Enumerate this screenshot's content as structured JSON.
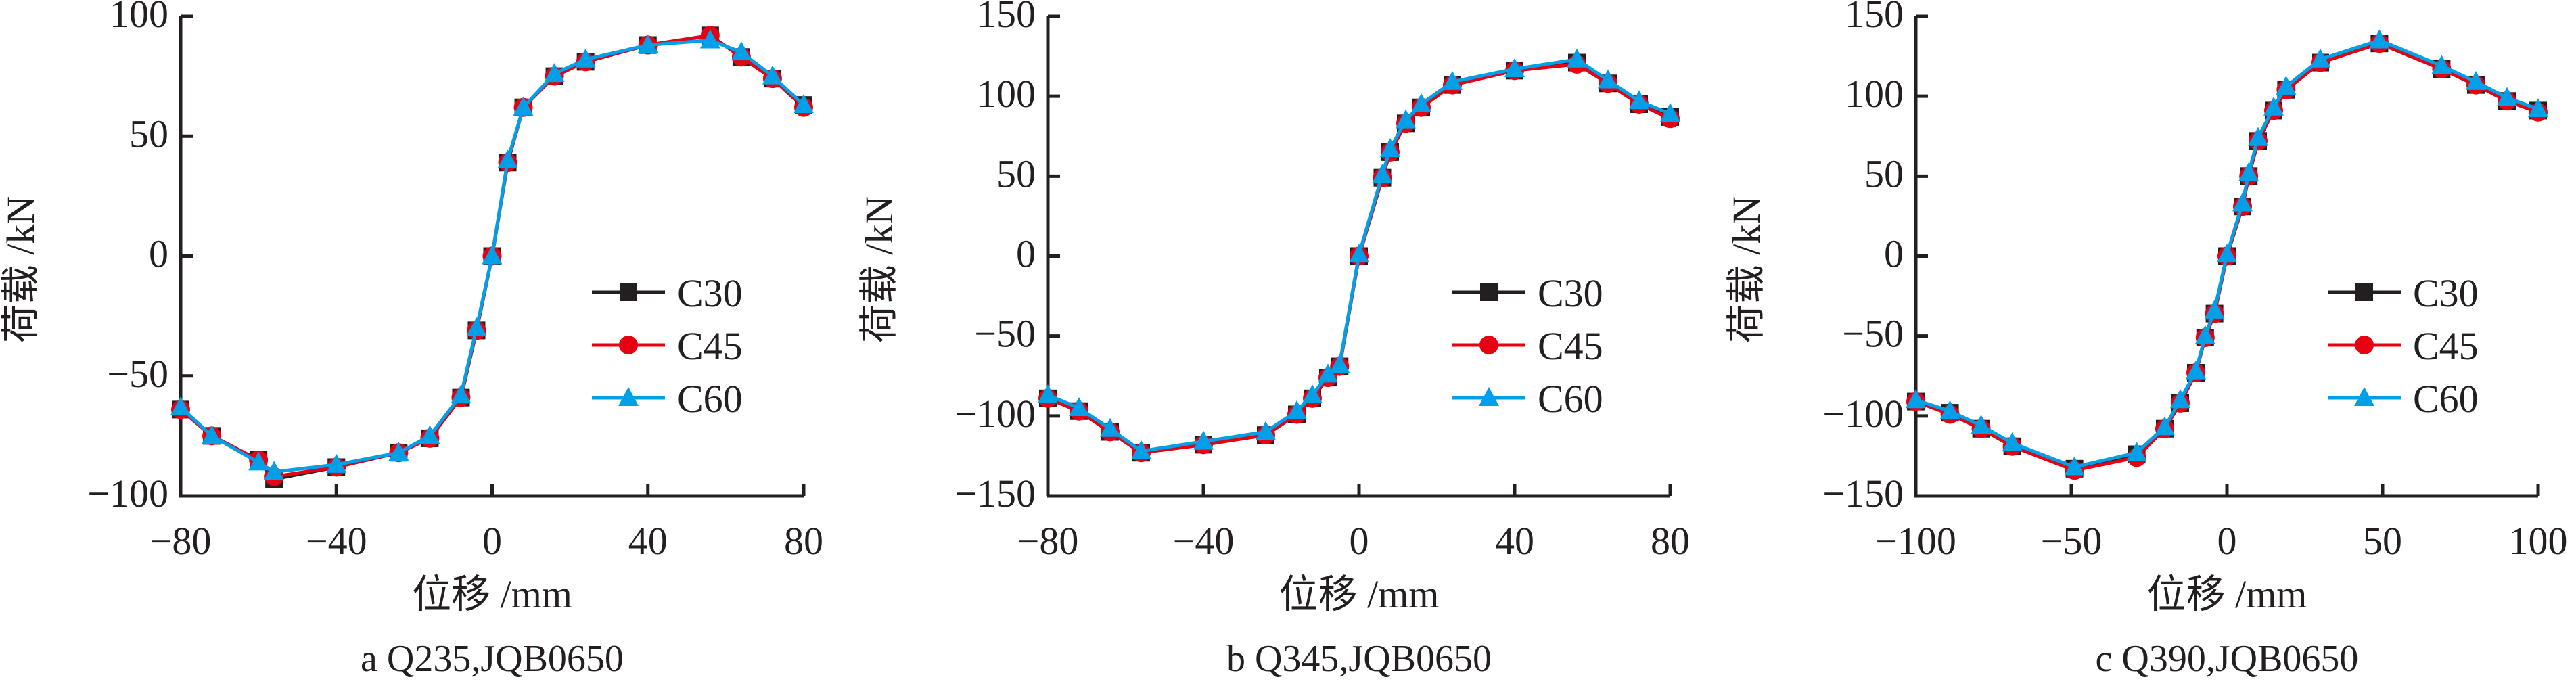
{
  "chart_data": [
    {
      "type": "line",
      "caption": "a  Q235,JQB0650",
      "xlabel": "位移 /mm",
      "ylabel": "荷载 /kN",
      "xlim": [
        -80,
        80
      ],
      "ylim": [
        -100,
        100
      ],
      "xticks": [
        -80,
        -40,
        0,
        40,
        80
      ],
      "yticks": [
        -100,
        -50,
        0,
        50,
        100
      ],
      "legend": "right",
      "x": [
        -80,
        -72,
        -60,
        -56,
        -40,
        -24,
        -16,
        -8,
        -4,
        0,
        4,
        8,
        16,
        24,
        40,
        56,
        64,
        72,
        80
      ],
      "series": [
        {
          "name": "C30",
          "color": "#231f20",
          "marker": "square",
          "values": [
            -64,
            -75,
            -85,
            -93,
            -88,
            -82,
            -76,
            -59,
            -31,
            0,
            39,
            62,
            75,
            81,
            88,
            92,
            83,
            74,
            63
          ]
        },
        {
          "name": "C45",
          "color": "#e60012",
          "marker": "circle",
          "values": [
            -64,
            -75,
            -85,
            -92,
            -88,
            -82,
            -76,
            -59,
            -31,
            0,
            39,
            62,
            75,
            81,
            88,
            92,
            83,
            74,
            62
          ]
        },
        {
          "name": "C60",
          "color": "#00a0e9",
          "marker": "triangle",
          "values": [
            -63,
            -75,
            -86,
            -90,
            -87,
            -82,
            -75,
            -58,
            -30,
            0,
            40,
            62,
            76,
            82,
            88,
            90,
            85,
            75,
            63
          ]
        }
      ]
    },
    {
      "type": "line",
      "caption": "b  Q345,JQB0650",
      "xlabel": "位移 /mm",
      "ylabel": "荷载 /kN",
      "xlim": [
        -80,
        80
      ],
      "ylim": [
        -150,
        150
      ],
      "xticks": [
        -80,
        -40,
        0,
        40,
        80
      ],
      "yticks": [
        -150,
        -100,
        -50,
        0,
        50,
        100,
        150
      ],
      "legend": "right",
      "x": [
        -80,
        -72,
        -64,
        -56,
        -40,
        -24,
        -16,
        -12,
        -8,
        -5,
        0,
        6,
        8,
        12,
        16,
        24,
        40,
        56,
        64,
        72,
        80
      ],
      "series": [
        {
          "name": "C30",
          "color": "#231f20",
          "marker": "square",
          "values": [
            -89,
            -97,
            -110,
            -123,
            -118,
            -112,
            -99,
            -89,
            -76,
            -69,
            0,
            49,
            65,
            83,
            93,
            107,
            116,
            121,
            108,
            95,
            87
          ]
        },
        {
          "name": "C45",
          "color": "#e60012",
          "marker": "circle",
          "values": [
            -89,
            -97,
            -110,
            -123,
            -118,
            -112,
            -99,
            -89,
            -76,
            -69,
            0,
            49,
            65,
            83,
            93,
            107,
            116,
            120,
            108,
            95,
            86
          ]
        },
        {
          "name": "C60",
          "color": "#00a0e9",
          "marker": "triangle",
          "values": [
            -87,
            -95,
            -108,
            -122,
            -116,
            -110,
            -97,
            -87,
            -74,
            -68,
            1,
            51,
            67,
            85,
            95,
            109,
            117,
            123,
            110,
            97,
            89
          ]
        }
      ]
    },
    {
      "type": "line",
      "caption": "c  Q390,JQB0650",
      "xlabel": "位移 /mm",
      "ylabel": "荷载 /kN",
      "xlim": [
        -100,
        100
      ],
      "ylim": [
        -150,
        150
      ],
      "xticks": [
        -100,
        -50,
        0,
        50,
        100
      ],
      "yticks": [
        -150,
        -100,
        -50,
        0,
        50,
        100,
        150
      ],
      "legend": "right",
      "x": [
        -100,
        -89,
        -79,
        -69,
        -49,
        -29,
        -20,
        -15,
        -10,
        -7,
        -4,
        0,
        5,
        7,
        10,
        15,
        19,
        30,
        49,
        69,
        80,
        90,
        100
      ],
      "series": [
        {
          "name": "C30",
          "color": "#231f20",
          "marker": "square",
          "values": [
            -91,
            -98,
            -108,
            -119,
            -133,
            -124,
            -108,
            -92,
            -73,
            -51,
            -36,
            0,
            31,
            50,
            72,
            91,
            104,
            121,
            133,
            117,
            107,
            97,
            91
          ]
        },
        {
          "name": "C45",
          "color": "#e60012",
          "marker": "circle",
          "values": [
            -91,
            -99,
            -108,
            -119,
            -134,
            -126,
            -108,
            -92,
            -73,
            -51,
            -36,
            0,
            31,
            50,
            72,
            91,
            104,
            121,
            133,
            117,
            107,
            97,
            90
          ]
        },
        {
          "name": "C60",
          "color": "#00a0e9",
          "marker": "triangle",
          "values": [
            -90,
            -97,
            -106,
            -117,
            -132,
            -123,
            -107,
            -90,
            -72,
            -50,
            -34,
            1,
            33,
            52,
            74,
            93,
            106,
            123,
            135,
            119,
            109,
            99,
            92
          ]
        }
      ]
    }
  ]
}
